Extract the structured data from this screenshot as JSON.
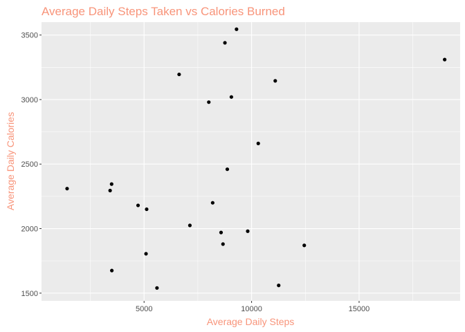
{
  "chart_data": {
    "type": "scatter",
    "title": "Average Daily Steps Taken vs Calories Burned",
    "xlabel": "Average Daily Steps",
    "ylabel": "Average Daily Calories",
    "xlim": [
      230,
      19700
    ],
    "ylim": [
      1440,
      3600
    ],
    "x_ticks": [
      5000,
      10000,
      15000
    ],
    "x_minor_ticks": [
      2500,
      7500,
      12500,
      17500
    ],
    "y_ticks": [
      1500,
      2000,
      2500,
      3000,
      3500
    ],
    "y_minor_ticks": [
      1750,
      2250,
      2750,
      3250
    ],
    "grid": true,
    "legend": "none",
    "colors": {
      "title": "#f8947a",
      "axis_title": "#f8947a",
      "panel_background": "#ebebeb",
      "grid": "#ffffff",
      "point": "#000000"
    },
    "points": [
      {
        "x": 1420,
        "y": 2310
      },
      {
        "x": 3420,
        "y": 2295
      },
      {
        "x": 3490,
        "y": 2345
      },
      {
        "x": 3500,
        "y": 1675
      },
      {
        "x": 4720,
        "y": 2180
      },
      {
        "x": 5090,
        "y": 1805
      },
      {
        "x": 5120,
        "y": 2150
      },
      {
        "x": 5600,
        "y": 1540
      },
      {
        "x": 6630,
        "y": 3195
      },
      {
        "x": 7130,
        "y": 2025
      },
      {
        "x": 8010,
        "y": 2980
      },
      {
        "x": 8190,
        "y": 2200
      },
      {
        "x": 8580,
        "y": 1970
      },
      {
        "x": 8670,
        "y": 1880
      },
      {
        "x": 8760,
        "y": 3440
      },
      {
        "x": 8870,
        "y": 2460
      },
      {
        "x": 9060,
        "y": 3020
      },
      {
        "x": 9300,
        "y": 3545
      },
      {
        "x": 9820,
        "y": 1980
      },
      {
        "x": 10310,
        "y": 2660
      },
      {
        "x": 11100,
        "y": 3145
      },
      {
        "x": 11260,
        "y": 1560
      },
      {
        "x": 12450,
        "y": 1870
      },
      {
        "x": 18980,
        "y": 3310
      }
    ]
  }
}
